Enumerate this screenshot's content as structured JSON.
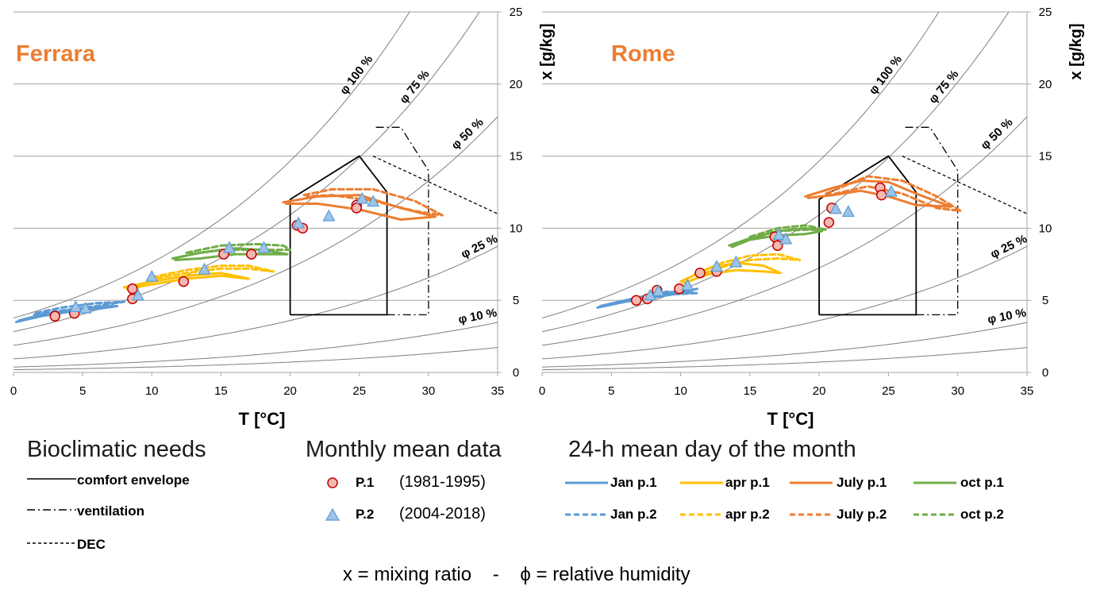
{
  "colors": {
    "jan": "#5b9bd5",
    "apr": "#ffc000",
    "july": "#ed7d31",
    "oct": "#70ad47",
    "city_title": "#ed7d31",
    "p1_fill": "#f4b8b0",
    "p1_stroke": "#c00000",
    "p2_fill": "#9dc3e6",
    "p2_stroke": "#5b9bd5",
    "rh_curve": "#7f7f7f",
    "grid": "#a6a6a6"
  },
  "chart_data": [
    {
      "type": "scatter",
      "title": "Ferrara",
      "xlabel": "T [°C]",
      "ylabel": "x [g/kg]",
      "xlim": [
        0,
        35
      ],
      "ylim": [
        0,
        25
      ],
      "x_ticks": [
        "0",
        "5",
        "10",
        "15",
        "20",
        "25",
        "30",
        "35"
      ],
      "y_ticks": [
        "0",
        "5",
        "10",
        "15",
        "20",
        "25"
      ],
      "grid": "horizontal",
      "rh_curves": [
        {
          "label": "φ 100 %",
          "rh": 1.0
        },
        {
          "label": "φ 75 %",
          "rh": 0.75
        },
        {
          "label": "φ 50 %",
          "rh": 0.5
        },
        {
          "label": "φ 25 %",
          "rh": 0.25
        },
        {
          "label": "φ 10 %",
          "rh": 0.1
        },
        {
          "label": "",
          "rh": 0.05
        }
      ],
      "comfort_envelope": [
        [
          20,
          4
        ],
        [
          20,
          12
        ],
        [
          25,
          15
        ],
        [
          27,
          12.5
        ],
        [
          27,
          4
        ],
        [
          20,
          4
        ]
      ],
      "ventilation": [
        [
          27,
          4
        ],
        [
          30,
          4
        ],
        [
          30,
          14
        ],
        [
          28,
          17
        ],
        [
          26,
          17
        ]
      ],
      "dec": [
        [
          26,
          15
        ],
        [
          35,
          11
        ]
      ],
      "monthly_p1": [
        [
          3,
          3.9
        ],
        [
          4.4,
          4.1
        ],
        [
          8.6,
          5.1
        ],
        [
          8.6,
          5.8
        ],
        [
          12.3,
          6.3
        ],
        [
          15.2,
          8.2
        ],
        [
          17.2,
          8.2
        ],
        [
          20.5,
          10.2
        ],
        [
          20.9,
          10
        ],
        [
          24.8,
          11.6
        ],
        [
          24.8,
          11.4
        ]
      ],
      "monthly_p2": [
        [
          4.5,
          4.5
        ],
        [
          5.2,
          4.4
        ],
        [
          9,
          5.3
        ],
        [
          10,
          6.6
        ],
        [
          13.8,
          7.1
        ],
        [
          15.6,
          8.6
        ],
        [
          18.1,
          8.6
        ],
        [
          20.6,
          10.3
        ],
        [
          22.8,
          10.8
        ],
        [
          25.2,
          12
        ],
        [
          26,
          11.8
        ]
      ],
      "series": [
        {
          "name": "Jan p.1",
          "color_key": "jan",
          "dashed": false,
          "points": [
            [
              0.2,
              3.5
            ],
            [
              2,
              3.9
            ],
            [
              4,
              4.2
            ],
            [
              6,
              4.4
            ],
            [
              7.5,
              4.6
            ],
            [
              6,
              4.5
            ],
            [
              4,
              4.3
            ],
            [
              2,
              4.0
            ],
            [
              0.4,
              3.6
            ]
          ]
        },
        {
          "name": "Jan p.2",
          "color_key": "jan",
          "dashed": true,
          "points": [
            [
              1.5,
              4.0
            ],
            [
              3.5,
              4.3
            ],
            [
              6,
              4.6
            ],
            [
              8,
              4.9
            ],
            [
              6,
              4.8
            ],
            [
              3.5,
              4.5
            ],
            [
              1.5,
              4.1
            ]
          ]
        },
        {
          "name": "apr p.1",
          "color_key": "apr",
          "dashed": false,
          "points": [
            [
              8,
              5.9
            ],
            [
              10,
              6.3
            ],
            [
              12.5,
              6.7
            ],
            [
              15,
              6.9
            ],
            [
              17,
              6.5
            ],
            [
              15,
              6.7
            ],
            [
              12.5,
              6.5
            ],
            [
              10,
              6.1
            ],
            [
              8.2,
              5.8
            ]
          ]
        },
        {
          "name": "apr p.2",
          "color_key": "apr",
          "dashed": true,
          "points": [
            [
              10,
              6.6
            ],
            [
              12.5,
              7.1
            ],
            [
              15,
              7.4
            ],
            [
              17,
              7.4
            ],
            [
              18.8,
              7.0
            ],
            [
              17,
              7.2
            ],
            [
              15,
              7.2
            ],
            [
              12.5,
              6.9
            ],
            [
              10.2,
              6.5
            ]
          ]
        },
        {
          "name": "July p.1",
          "color_key": "july",
          "dashed": false,
          "points": [
            [
              19.5,
              11.8
            ],
            [
              22,
              12.2
            ],
            [
              25,
              12.3
            ],
            [
              28,
              11.4
            ],
            [
              30.5,
              10.8
            ],
            [
              28,
              10.6
            ],
            [
              25,
              11.3
            ],
            [
              22,
              11.7
            ],
            [
              19.7,
              11.7
            ]
          ]
        },
        {
          "name": "July p.2",
          "color_key": "july",
          "dashed": true,
          "points": [
            [
              21,
              12.3
            ],
            [
              23,
              12.7
            ],
            [
              26,
              12.7
            ],
            [
              29,
              11.9
            ],
            [
              31,
              10.9
            ],
            [
              29,
              11.2
            ],
            [
              26,
              11.9
            ],
            [
              23,
              12.3
            ],
            [
              21.2,
              12.2
            ]
          ]
        },
        {
          "name": "oct p.1",
          "color_key": "oct",
          "dashed": false,
          "points": [
            [
              11.5,
              7.9
            ],
            [
              13.5,
              8.3
            ],
            [
              16,
              8.6
            ],
            [
              18,
              8.5
            ],
            [
              19.8,
              8.2
            ],
            [
              18,
              8.2
            ],
            [
              16,
              8.2
            ],
            [
              13.5,
              7.9
            ],
            [
              11.7,
              7.8
            ]
          ]
        },
        {
          "name": "oct p.2",
          "color_key": "oct",
          "dashed": true,
          "points": [
            [
              12.5,
              8.3
            ],
            [
              15,
              8.8
            ],
            [
              17.5,
              8.9
            ],
            [
              19.5,
              8.8
            ],
            [
              20,
              8.5
            ],
            [
              17.5,
              8.5
            ],
            [
              15,
              8.5
            ],
            [
              12.7,
              8.2
            ]
          ]
        }
      ]
    },
    {
      "type": "scatter",
      "title": "Rome",
      "xlabel": "T [°C]",
      "ylabel": "x [g/kg]",
      "xlim": [
        0,
        35
      ],
      "ylim": [
        0,
        25
      ],
      "x_ticks": [
        "0",
        "5",
        "10",
        "15",
        "20",
        "25",
        "30",
        "35"
      ],
      "y_ticks": [
        "0",
        "5",
        "10",
        "15",
        "20",
        "25"
      ],
      "grid": "horizontal",
      "rh_curves": [
        {
          "label": "φ 100 %",
          "rh": 1.0
        },
        {
          "label": "φ 75 %",
          "rh": 0.75
        },
        {
          "label": "φ 50 %",
          "rh": 0.5
        },
        {
          "label": "φ 25 %",
          "rh": 0.25
        },
        {
          "label": "φ 10 %",
          "rh": 0.1
        },
        {
          "label": "",
          "rh": 0.05
        }
      ],
      "comfort_envelope": [
        [
          20,
          4
        ],
        [
          20,
          12
        ],
        [
          25,
          15
        ],
        [
          27,
          12.5
        ],
        [
          27,
          4
        ],
        [
          20,
          4
        ]
      ],
      "ventilation": [
        [
          27,
          4
        ],
        [
          30,
          4
        ],
        [
          30,
          14
        ],
        [
          28,
          17
        ],
        [
          26,
          17
        ]
      ],
      "dec": [
        [
          26,
          15
        ],
        [
          35,
          11
        ]
      ],
      "monthly_p1": [
        [
          6.8,
          5
        ],
        [
          7.6,
          5.1
        ],
        [
          8.3,
          5.7
        ],
        [
          9.9,
          5.8
        ],
        [
          11.4,
          6.9
        ],
        [
          12.6,
          7
        ],
        [
          16.8,
          9.4
        ],
        [
          17,
          8.8
        ],
        [
          20.7,
          10.4
        ],
        [
          20.9,
          11.4
        ],
        [
          24.4,
          12.8
        ],
        [
          24.5,
          12.3
        ]
      ],
      "monthly_p2": [
        [
          7.8,
          5.3
        ],
        [
          8.4,
          5.6
        ],
        [
          10.5,
          6
        ],
        [
          12.6,
          7.3
        ],
        [
          14,
          7.6
        ],
        [
          17.1,
          9.5
        ],
        [
          17.6,
          9.2
        ],
        [
          21.2,
          11.3
        ],
        [
          22.1,
          11.1
        ],
        [
          25.2,
          12.5
        ]
      ],
      "series": [
        {
          "name": "Jan p.1",
          "color_key": "jan",
          "dashed": false,
          "points": [
            [
              4,
              4.5
            ],
            [
              6,
              4.9
            ],
            [
              8,
              5.2
            ],
            [
              10,
              5.5
            ],
            [
              11.2,
              5.8
            ],
            [
              10,
              5.6
            ],
            [
              8,
              5.4
            ],
            [
              6,
              5.0
            ],
            [
              4.2,
              4.6
            ]
          ]
        },
        {
          "name": "Jan p.2",
          "color_key": "jan",
          "dashed": true,
          "points": [
            [
              7,
              5.1
            ],
            [
              9,
              5.4
            ],
            [
              11.2,
              5.5
            ],
            [
              9,
              5.6
            ],
            [
              7.2,
              5.2
            ]
          ]
        },
        {
          "name": "apr p.1",
          "color_key": "apr",
          "dashed": false,
          "points": [
            [
              10,
              6.3
            ],
            [
              12,
              7.2
            ],
            [
              14,
              7.6
            ],
            [
              16,
              7.4
            ],
            [
              17.2,
              6.9
            ],
            [
              16,
              7.0
            ],
            [
              14,
              7.1
            ],
            [
              12,
              6.8
            ],
            [
              10.2,
              6.2
            ]
          ]
        },
        {
          "name": "apr p.2",
          "color_key": "apr",
          "dashed": true,
          "points": [
            [
              11,
              6.8
            ],
            [
              13,
              7.6
            ],
            [
              15,
              8.1
            ],
            [
              17,
              8.2
            ],
            [
              18.6,
              7.8
            ],
            [
              17,
              7.9
            ],
            [
              15,
              7.8
            ],
            [
              13,
              7.3
            ],
            [
              11.2,
              6.7
            ]
          ]
        },
        {
          "name": "July p.1",
          "color_key": "july",
          "dashed": false,
          "points": [
            [
              19,
              12.2
            ],
            [
              21,
              12.8
            ],
            [
              23,
              13.3
            ],
            [
              25,
              13.2
            ],
            [
              27,
              12.4
            ],
            [
              29.5,
              11.5
            ],
            [
              27,
              11.6
            ],
            [
              25,
              12.2
            ],
            [
              23,
              12.6
            ],
            [
              21,
              12.3
            ],
            [
              19.2,
              12.1
            ]
          ]
        },
        {
          "name": "July p.2",
          "color_key": "july",
          "dashed": true,
          "points": [
            [
              20.5,
              12.4
            ],
            [
              23.5,
              13.6
            ],
            [
              26,
              13.3
            ],
            [
              28.5,
              12.2
            ],
            [
              30.2,
              11.2
            ],
            [
              28.5,
              11.4
            ],
            [
              26,
              12.4
            ],
            [
              23.5,
              12.9
            ],
            [
              20.7,
              12.3
            ]
          ]
        },
        {
          "name": "oct p.1",
          "color_key": "oct",
          "dashed": false,
          "points": [
            [
              13.5,
              8.8
            ],
            [
              15,
              9.3
            ],
            [
              17,
              9.8
            ],
            [
              19,
              10.0
            ],
            [
              20.2,
              9.8
            ],
            [
              19,
              9.6
            ],
            [
              17,
              9.5
            ],
            [
              15,
              9.2
            ],
            [
              13.7,
              8.7
            ]
          ]
        },
        {
          "name": "oct p.2",
          "color_key": "oct",
          "dashed": true,
          "points": [
            [
              15,
              9.4
            ],
            [
              17,
              10.0
            ],
            [
              19,
              10.2
            ],
            [
              20.5,
              9.9
            ],
            [
              19,
              9.9
            ],
            [
              17,
              9.8
            ],
            [
              15.2,
              9.3
            ]
          ]
        }
      ]
    }
  ],
  "legend": {
    "bioclimatic_title": "Bioclimatic needs",
    "comfort_label": "comfort envelope",
    "ventilation_label": "ventilation",
    "dec_label": "DEC",
    "monthly_title": "Monthly mean data",
    "p1_label": "P.1",
    "p1_period": "(1981-1995)",
    "p2_label": "P.2",
    "p2_period": "(2004-2018)",
    "daily_title": "24-h mean day of the month",
    "jan_p1": "Jan p.1",
    "apr_p1": "apr p.1",
    "july_p1": "July p.1",
    "oct_p1": "oct p.1",
    "jan_p2": "Jan p.2",
    "apr_p2": "apr p.2",
    "july_p2": "July p.2",
    "oct_p2": "oct p.2"
  },
  "footer": {
    "text": "x = mixing ratio    -    ϕ = relative humidity"
  }
}
